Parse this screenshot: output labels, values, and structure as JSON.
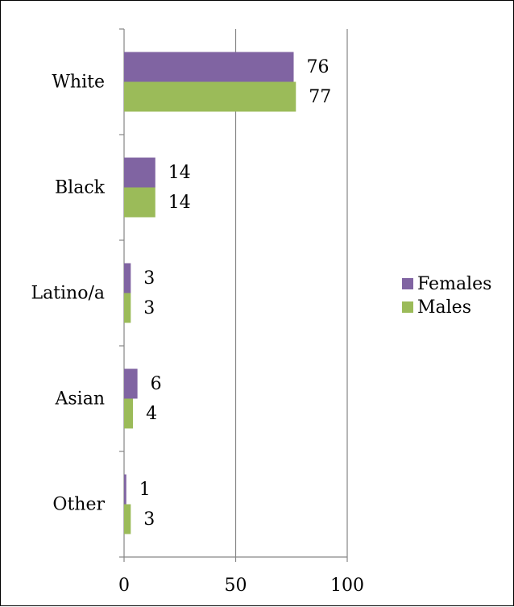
{
  "chart_data": {
    "type": "bar",
    "orientation": "horizontal",
    "categories": [
      "White",
      "Black",
      "Latino/a",
      "Asian",
      "Other"
    ],
    "series": [
      {
        "name": "Females",
        "values": [
          76,
          14,
          3,
          6,
          1
        ],
        "color": "#8064A2"
      },
      {
        "name": "Males",
        "values": [
          77,
          14,
          3,
          4,
          3
        ],
        "color": "#9BBB59"
      }
    ],
    "xlim": [
      0,
      100
    ],
    "xticks": [
      "0",
      "50",
      "100"
    ],
    "grid": "vertical",
    "legend": "right",
    "data_labels": true
  }
}
